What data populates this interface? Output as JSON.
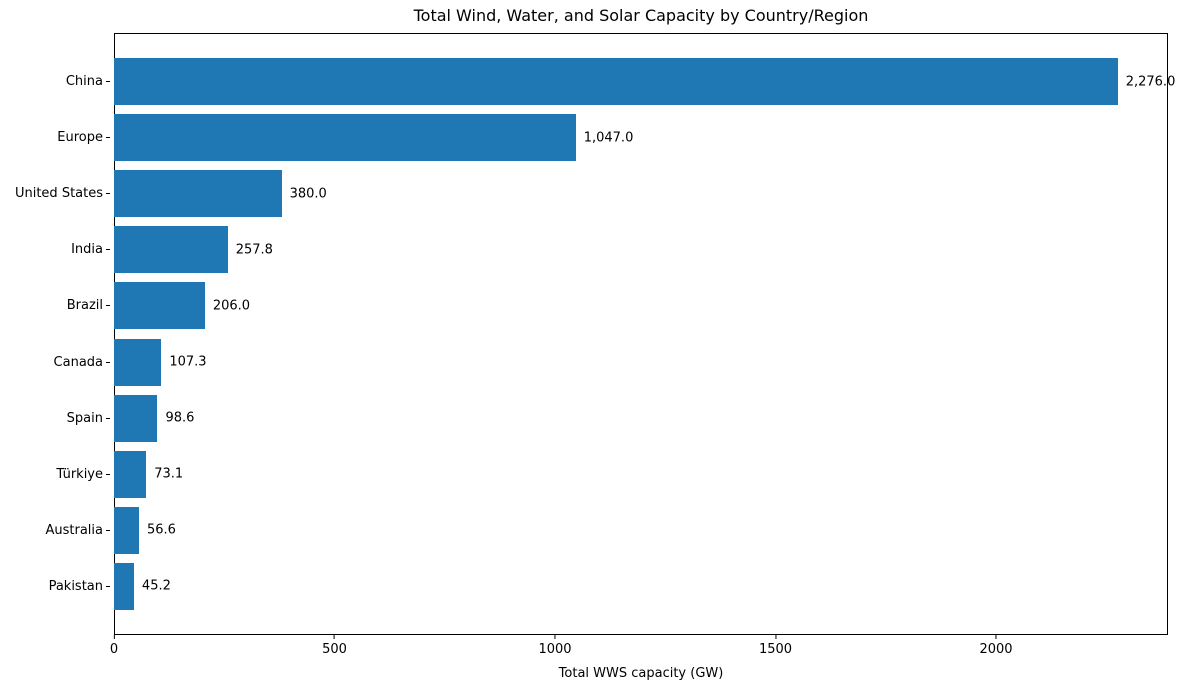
{
  "chart_data": {
    "type": "bar",
    "orientation": "horizontal",
    "title": "Total Wind, Water, and Solar Capacity by Country/Region",
    "categories": [
      "China",
      "Europe",
      "United States",
      "India",
      "Brazil",
      "Canada",
      "Spain",
      "Türkiye",
      "Australia",
      "Pakistan"
    ],
    "values": [
      2276.0,
      1047.0,
      380.0,
      257.8,
      206.0,
      107.3,
      98.6,
      73.1,
      56.6,
      45.2
    ],
    "value_labels": [
      "2,276.0",
      "1,047.0",
      "380.0",
      "257.8",
      "206.0",
      "107.3",
      "98.6",
      "73.1",
      "56.6",
      "45.2"
    ],
    "xlabel": "Total WWS capacity (GW)",
    "ylabel": "",
    "xlim": [
      0,
      2390
    ],
    "xticks": [
      0,
      500,
      1000,
      1500,
      2000
    ],
    "xtick_labels": [
      "0",
      "500",
      "1000",
      "1500",
      "2000"
    ],
    "bar_color": "#1f77b4",
    "text_color": "#000000",
    "grid": false,
    "legend_position": "none"
  }
}
